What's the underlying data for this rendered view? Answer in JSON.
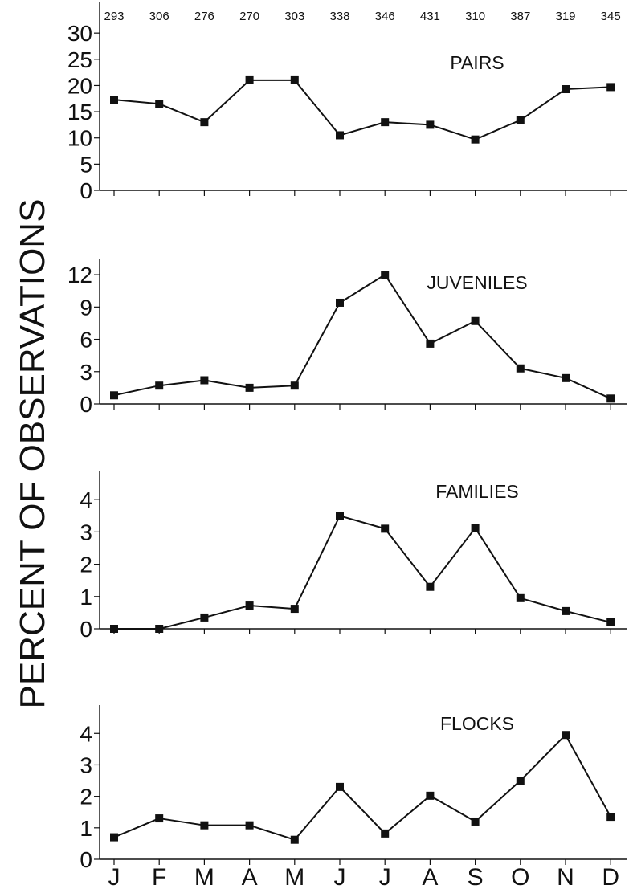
{
  "y_axis_label": "PERCENT OF OBSERVATIONS",
  "month_labels": [
    "J",
    "F",
    "M",
    "A",
    "M",
    "J",
    "J",
    "A",
    "S",
    "O",
    "N",
    "D"
  ],
  "sample_sizes": [
    "293",
    "306",
    "276",
    "270",
    "303",
    "338",
    "346",
    "431",
    "310",
    "387",
    "319",
    "345"
  ],
  "chart_data": [
    {
      "type": "line",
      "title": "PAIRS",
      "categories": [
        "J",
        "F",
        "M",
        "A",
        "M",
        "J",
        "J",
        "A",
        "S",
        "O",
        "N",
        "D"
      ],
      "values": [
        17.3,
        16.5,
        13.0,
        21.0,
        21.0,
        10.5,
        13.0,
        12.5,
        9.7,
        13.4,
        19.3,
        19.7
      ],
      "ylim": [
        0,
        36
      ],
      "yticks": [
        0,
        5,
        10,
        15,
        20,
        25,
        30
      ]
    },
    {
      "type": "line",
      "title": "JUVENILES",
      "categories": [
        "J",
        "F",
        "M",
        "A",
        "M",
        "J",
        "J",
        "A",
        "S",
        "O",
        "N",
        "D"
      ],
      "values": [
        0.8,
        1.7,
        2.2,
        1.5,
        1.7,
        9.4,
        12.0,
        5.6,
        7.7,
        3.3,
        2.4,
        0.5
      ],
      "ylim": [
        0,
        13.5
      ],
      "yticks": [
        0,
        3,
        6,
        9,
        12
      ]
    },
    {
      "type": "line",
      "title": "FAMILIES",
      "categories": [
        "J",
        "F",
        "M",
        "A",
        "M",
        "J",
        "J",
        "A",
        "S",
        "O",
        "N",
        "D"
      ],
      "values": [
        0.0,
        0.0,
        0.35,
        0.72,
        0.62,
        3.5,
        3.1,
        1.3,
        3.12,
        0.95,
        0.55,
        0.2
      ],
      "ylim": [
        0,
        4.9
      ],
      "yticks": [
        0,
        1,
        2,
        3,
        4
      ]
    },
    {
      "type": "line",
      "title": "FLOCKS",
      "categories": [
        "J",
        "F",
        "M",
        "A",
        "M",
        "J",
        "J",
        "A",
        "S",
        "O",
        "N",
        "D"
      ],
      "values": [
        0.7,
        1.3,
        1.08,
        1.08,
        0.62,
        2.3,
        0.82,
        2.02,
        1.2,
        2.5,
        3.95,
        1.35
      ],
      "ylim": [
        0,
        4.9
      ],
      "yticks": [
        0,
        1,
        2,
        3,
        4
      ]
    }
  ]
}
